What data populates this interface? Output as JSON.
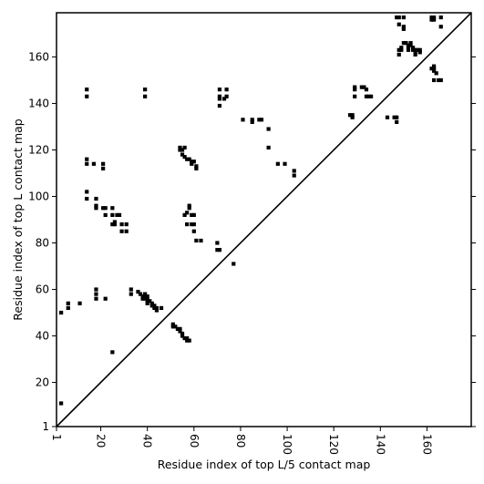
{
  "chart_data": {
    "type": "scatter",
    "xlabel": "Residue index of top L/5 contact map",
    "ylabel": "Residue index of top L contact map",
    "xlim": [
      1,
      179
    ],
    "ylim": [
      1,
      179
    ],
    "xticks": [
      1,
      20,
      40,
      60,
      80,
      100,
      120,
      140,
      160
    ],
    "yticks": [
      1,
      20,
      40,
      60,
      80,
      100,
      120,
      140,
      160
    ],
    "xtick_rotation": 90,
    "grid": false,
    "diagonal_line": true,
    "marker": "square",
    "marker_color": "#000000",
    "points": [
      [
        3,
        11
      ],
      [
        3,
        50
      ],
      [
        6,
        52
      ],
      [
        6,
        54
      ],
      [
        11,
        54
      ],
      [
        14,
        99
      ],
      [
        14,
        102
      ],
      [
        14,
        114
      ],
      [
        14,
        116
      ],
      [
        14,
        143
      ],
      [
        14,
        146
      ],
      [
        17,
        114
      ],
      [
        18,
        95
      ],
      [
        18,
        96
      ],
      [
        18,
        99
      ],
      [
        18,
        56
      ],
      [
        18,
        58
      ],
      [
        18,
        60
      ],
      [
        21,
        95
      ],
      [
        21,
        112
      ],
      [
        21,
        114
      ],
      [
        22,
        95
      ],
      [
        22,
        92
      ],
      [
        22,
        56
      ],
      [
        25,
        33
      ],
      [
        25,
        88
      ],
      [
        25,
        92
      ],
      [
        25,
        95
      ],
      [
        26,
        88
      ],
      [
        26,
        89
      ],
      [
        27,
        92
      ],
      [
        28,
        92
      ],
      [
        29,
        85
      ],
      [
        29,
        88
      ],
      [
        31,
        85
      ],
      [
        31,
        88
      ],
      [
        33,
        58
      ],
      [
        33,
        60
      ],
      [
        36,
        59
      ],
      [
        37,
        58
      ],
      [
        38,
        57
      ],
      [
        38,
        56
      ],
      [
        39,
        58
      ],
      [
        39,
        57
      ],
      [
        39,
        56
      ],
      [
        40,
        55
      ],
      [
        40,
        54
      ],
      [
        40,
        57
      ],
      [
        40,
        56
      ],
      [
        41,
        55
      ],
      [
        42,
        54
      ],
      [
        42,
        53
      ],
      [
        43,
        53
      ],
      [
        43,
        52
      ],
      [
        44,
        51
      ],
      [
        44,
        52
      ],
      [
        46,
        52
      ],
      [
        39,
        143
      ],
      [
        39,
        146
      ],
      [
        51,
        44
      ],
      [
        51,
        45
      ],
      [
        52,
        44
      ],
      [
        53,
        43
      ],
      [
        54,
        42
      ],
      [
        54,
        43
      ],
      [
        55,
        41
      ],
      [
        55,
        40
      ],
      [
        56,
        39
      ],
      [
        57,
        38
      ],
      [
        57,
        39
      ],
      [
        58,
        38
      ],
      [
        54,
        121
      ],
      [
        54,
        120
      ],
      [
        55,
        118
      ],
      [
        55,
        120
      ],
      [
        56,
        117
      ],
      [
        56,
        121
      ],
      [
        57,
        116
      ],
      [
        58,
        116
      ],
      [
        59,
        115
      ],
      [
        59,
        114
      ],
      [
        60,
        115
      ],
      [
        61,
        113
      ],
      [
        61,
        112
      ],
      [
        56,
        92
      ],
      [
        57,
        88
      ],
      [
        57,
        93
      ],
      [
        58,
        96
      ],
      [
        58,
        95
      ],
      [
        59,
        92
      ],
      [
        59,
        88
      ],
      [
        60,
        88
      ],
      [
        60,
        92
      ],
      [
        60,
        85
      ],
      [
        61,
        81
      ],
      [
        63,
        81
      ],
      [
        70,
        77
      ],
      [
        71,
        77
      ],
      [
        70,
        80
      ],
      [
        71,
        139
      ],
      [
        71,
        142
      ],
      [
        71,
        143
      ],
      [
        71,
        146
      ],
      [
        73,
        142
      ],
      [
        74,
        143
      ],
      [
        74,
        146
      ],
      [
        77,
        71
      ],
      [
        81,
        133
      ],
      [
        85,
        132
      ],
      [
        85,
        133
      ],
      [
        88,
        133
      ],
      [
        89,
        133
      ],
      [
        92,
        129
      ],
      [
        92,
        121
      ],
      [
        96,
        114
      ],
      [
        99,
        114
      ],
      [
        103,
        111
      ],
      [
        103,
        109
      ],
      [
        127,
        135
      ],
      [
        128,
        135
      ],
      [
        128,
        134
      ],
      [
        129,
        143
      ],
      [
        129,
        146
      ],
      [
        129,
        147
      ],
      [
        132,
        147
      ],
      [
        133,
        147
      ],
      [
        134,
        146
      ],
      [
        134,
        143
      ],
      [
        135,
        143
      ],
      [
        136,
        143
      ],
      [
        143,
        134
      ],
      [
        146,
        134
      ],
      [
        147,
        134
      ],
      [
        147,
        132
      ],
      [
        147,
        177
      ],
      [
        148,
        177
      ],
      [
        148,
        174
      ],
      [
        148,
        161
      ],
      [
        148,
        163
      ],
      [
        149,
        163
      ],
      [
        149,
        164
      ],
      [
        150,
        166
      ],
      [
        150,
        177
      ],
      [
        150,
        173
      ],
      [
        150,
        172
      ],
      [
        151,
        166
      ],
      [
        152,
        165
      ],
      [
        152,
        164
      ],
      [
        152,
        163
      ],
      [
        153,
        166
      ],
      [
        153,
        165
      ],
      [
        154,
        164
      ],
      [
        154,
        163
      ],
      [
        155,
        163
      ],
      [
        155,
        162
      ],
      [
        155,
        161
      ],
      [
        156,
        163
      ],
      [
        157,
        162
      ],
      [
        157,
        163
      ],
      [
        162,
        176
      ],
      [
        162,
        177
      ],
      [
        163,
        177
      ],
      [
        163,
        176
      ],
      [
        162,
        155
      ],
      [
        163,
        155
      ],
      [
        163,
        154
      ],
      [
        163,
        156
      ],
      [
        164,
        153
      ],
      [
        163,
        150
      ],
      [
        165,
        150
      ],
      [
        166,
        150
      ],
      [
        166,
        177
      ],
      [
        166,
        173
      ]
    ]
  }
}
